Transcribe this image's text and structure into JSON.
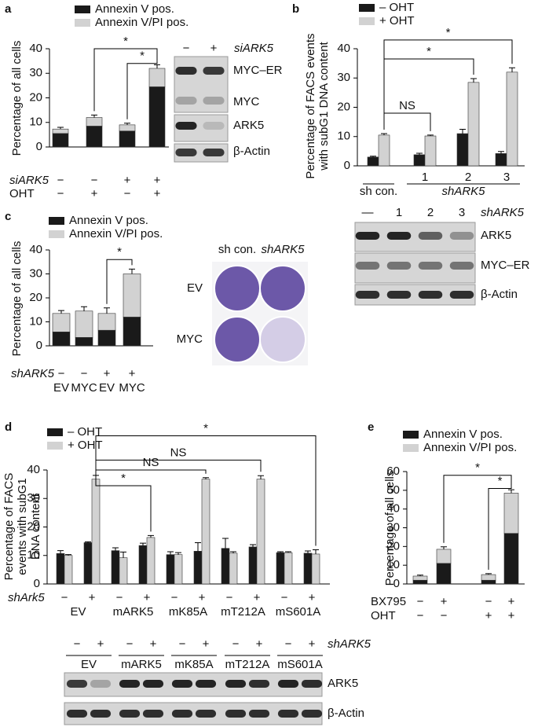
{
  "chart_data": [
    {
      "type": "bar",
      "stacked": true,
      "label": "a",
      "ylabel": [
        "Percentage of all cells"
      ],
      "ylim": [
        0,
        40
      ],
      "yticks": [
        0,
        10,
        20,
        30,
        40
      ],
      "series": [
        {
          "name": "Annexin V pos.",
          "color": "#1a1a1a",
          "values": [
            5.5,
            8.5,
            6.5,
            24.5
          ]
        },
        {
          "name": "Annexin V/PI pos.",
          "color": "#d2d2d2",
          "values": [
            1.8,
            3.5,
            2.5,
            7.5
          ],
          "errors": [
            0.7,
            1,
            0.7,
            1.5
          ]
        }
      ],
      "conditions": [
        {
          "name": "siARK5",
          "values": [
            "−",
            "−",
            "+",
            "+"
          ]
        },
        {
          "name": "OHT",
          "values": [
            "−",
            "+",
            "−",
            "+"
          ]
        }
      ],
      "annotations": [
        "*",
        "*"
      ],
      "blot": {
        "lanes": [
          "−",
          "+"
        ],
        "title": "siARK5",
        "rows": [
          "MYC–ER",
          "MYC",
          "ARK5",
          "β-Actin"
        ]
      }
    },
    {
      "type": "bar",
      "stacked": false,
      "label": "b",
      "ylabel": [
        "Percentage of FACS events",
        "with subG1 DNA content"
      ],
      "ylim": [
        0,
        40
      ],
      "yticks": [
        0,
        10,
        20,
        30,
        40
      ],
      "categories": [
        "sh con.",
        "1",
        "2",
        "3"
      ],
      "group_label": "shARK5",
      "series": [
        {
          "name": "– OHT",
          "color": "#1a1a1a",
          "values": [
            3,
            3.8,
            11,
            4.2
          ],
          "errors": [
            0.3,
            0.5,
            1.5,
            0.7
          ]
        },
        {
          "name": "+ OHT",
          "color": "#d2d2d2",
          "values": [
            10.5,
            10.2,
            28.5,
            32
          ],
          "errors": [
            0.5,
            0.3,
            1.3,
            1.5
          ]
        }
      ],
      "annotations": [
        "NS",
        "*",
        "*"
      ],
      "blot": {
        "lanes": [
          "—",
          "1",
          "2",
          "3"
        ],
        "title": "shARK5",
        "rows": [
          "ARK5",
          "MYC–ER",
          "β-Actin"
        ]
      }
    },
    {
      "type": "bar",
      "stacked": true,
      "label": "c",
      "ylabel": [
        "Percentage of all cells"
      ],
      "ylim": [
        0,
        40
      ],
      "yticks": [
        0,
        10,
        20,
        30,
        40
      ],
      "categories": [
        "EV",
        "MYC",
        "EV",
        "MYC"
      ],
      "series": [
        {
          "name": "Annexin V pos.",
          "color": "#1a1a1a",
          "values": [
            5.8,
            3.5,
            6.5,
            12
          ]
        },
        {
          "name": "Annexin V/PI pos.",
          "color": "#d2d2d2",
          "values": [
            7.7,
            11,
            7,
            18
          ],
          "errors": [
            1.2,
            1.8,
            2.3,
            2
          ]
        }
      ],
      "conditions": [
        {
          "name": "shARK5",
          "values": [
            "−",
            "−",
            "+",
            "+"
          ]
        }
      ],
      "annotations": [
        "*"
      ],
      "plates": {
        "columns": [
          "sh con.",
          "shARK5"
        ],
        "rows": [
          "EV",
          "MYC"
        ]
      }
    },
    {
      "type": "bar",
      "stacked": false,
      "label": "d",
      "ylabel": [
        "Percentage of FACS",
        "events with subG1",
        "DNA content"
      ],
      "ylim": [
        0,
        40
      ],
      "yticks": [
        0,
        10,
        20,
        30,
        40
      ],
      "series": [
        {
          "name": "– OHT",
          "color": "#1a1a1a",
          "values": [
            10.7,
            14.5,
            11.7,
            13.5,
            10.3,
            11.5,
            12.5,
            13,
            11,
            10.8
          ],
          "errors": [
            1,
            0.3,
            1,
            0.8,
            1,
            3,
            3.5,
            0.8,
            0.3,
            0.8
          ]
        },
        {
          "name": "+ OHT",
          "color": "#d2d2d2",
          "values": [
            10,
            36.8,
            9.2,
            16.3,
            10.3,
            36.8,
            10.8,
            36.8,
            11,
            10.5
          ],
          "errors": [
            0.3,
            1.3,
            2,
            0.7,
            0.7,
            0.5,
            0.5,
            1.2,
            0.3,
            1.5
          ]
        }
      ],
      "conditions": [
        {
          "name": "shArk5",
          "values": [
            "−",
            "+",
            "−",
            "+",
            "−",
            "+",
            "−",
            "+",
            "−",
            "+"
          ]
        }
      ],
      "groups": [
        "EV",
        "mARK5",
        "mK85A",
        "mT212A",
        "mS601A"
      ],
      "annotations": [
        "*",
        "NS",
        "NS",
        "*"
      ],
      "blot": {
        "lanes": [
          "−",
          "+",
          "−",
          "+",
          "−",
          "+",
          "−",
          "+",
          "−",
          "+"
        ],
        "title": "shARK5",
        "lane_groups": [
          "EV",
          "mARK5",
          "mK85A",
          "mT212A",
          "mS601A"
        ],
        "rows": [
          "ARK5",
          "β-Actin"
        ]
      }
    },
    {
      "type": "bar",
      "stacked": true,
      "label": "e",
      "ylabel": [
        "Percentage of all cells"
      ],
      "ylim": [
        0,
        60
      ],
      "yticks": [
        0,
        10,
        20,
        30,
        40,
        50,
        60
      ],
      "series": [
        {
          "name": "Annexin V pos.",
          "color": "#1a1a1a",
          "values": [
            2,
            11,
            2,
            27
          ]
        },
        {
          "name": "Annexin V/PI pos.",
          "color": "#d2d2d2",
          "values": [
            2.2,
            7.5,
            3,
            21.5
          ],
          "errors": [
            0.5,
            1.3,
            0.5,
            1.8
          ]
        }
      ],
      "conditions": [
        {
          "name": "BX795",
          "values": [
            "−",
            "+",
            "−",
            "+"
          ]
        },
        {
          "name": "OHT",
          "values": [
            "−",
            "−",
            "+",
            "+"
          ]
        }
      ],
      "annotations": [
        "*",
        "*"
      ]
    }
  ]
}
